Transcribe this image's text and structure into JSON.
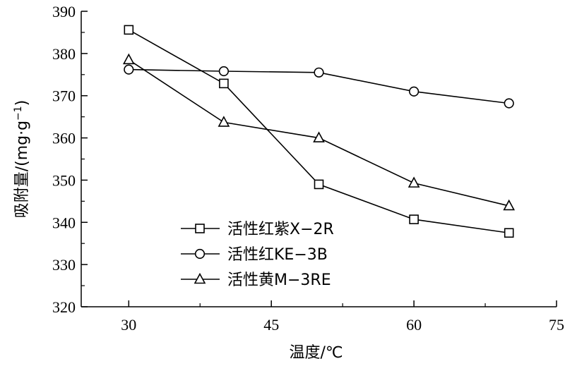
{
  "chart_data": {
    "type": "line",
    "xlabel": "温度/℃",
    "ylabel": "吸附量/(mg·g",
    "ylabel_sup": "−1",
    "ylabel_end": ")",
    "xlim": [
      25,
      75
    ],
    "ylim": [
      320,
      390
    ],
    "xticks": [
      30,
      45,
      60,
      75
    ],
    "yticks": [
      320,
      330,
      340,
      350,
      360,
      370,
      380,
      390
    ],
    "x": [
      30,
      40,
      50,
      60,
      70
    ],
    "series": [
      {
        "name": "活性红紫X−2R",
        "marker": "square",
        "values": [
          385.6,
          372.9,
          349.0,
          340.7,
          337.5
        ]
      },
      {
        "name": "活性红KE−3B",
        "marker": "circle",
        "values": [
          376.2,
          375.8,
          375.5,
          371.0,
          368.2
        ]
      },
      {
        "name": "活性黄M−3RE",
        "marker": "triangle",
        "values": [
          378.5,
          363.7,
          360.0,
          349.3,
          343.9
        ]
      }
    ],
    "grid": false,
    "legend_position": "bottom-left"
  }
}
